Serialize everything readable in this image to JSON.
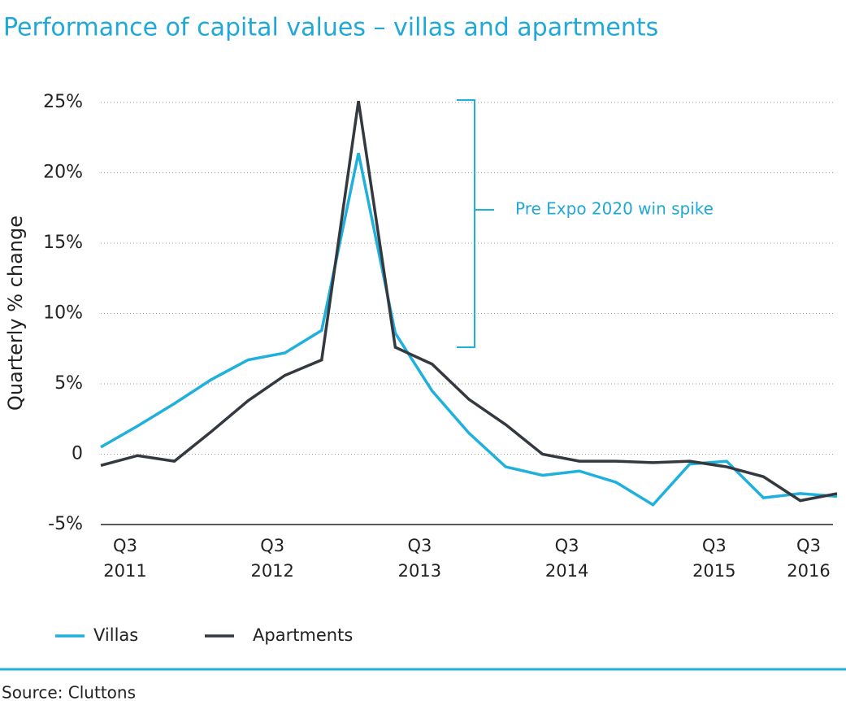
{
  "chart_data": {
    "type": "line",
    "title": "Performance of capital values – villas and apartments",
    "y_label": "Quarterly % change",
    "annotation": "Pre Expo 2020 win spike",
    "source": "Source: Cluttons",
    "categories": [
      "Q3\n2011",
      null,
      null,
      null,
      "Q3\n2012",
      null,
      null,
      null,
      "Q3\n2013",
      null,
      null,
      null,
      "Q3\n2014",
      null,
      null,
      null,
      "Q3\n2015",
      null,
      null,
      null,
      "Q3\n2016"
    ],
    "series": [
      {
        "name": "Villas",
        "color": "#1fb0dc",
        "values": [
          0.5,
          2.0,
          3.6,
          5.3,
          6.7,
          7.2,
          8.8,
          21.4,
          8.6,
          4.5,
          1.5,
          -0.9,
          -1.5,
          -1.2,
          -2.0,
          -3.6,
          -0.7,
          -0.5,
          -3.1,
          -2.8,
          -3.0
        ]
      },
      {
        "name": "Apartments",
        "color": "#33393f",
        "values": [
          -0.8,
          -0.1,
          -0.5,
          1.6,
          3.8,
          5.6,
          6.7,
          25.1,
          7.6,
          6.4,
          3.9,
          2.1,
          0.0,
          -0.5,
          -0.5,
          -0.6,
          -0.5,
          -0.9,
          -1.6,
          -3.3,
          -2.8
        ]
      }
    ],
    "ylim": [
      -5,
      25
    ],
    "yticks": [
      {
        "value": -5,
        "label": "-5%"
      },
      0,
      {
        "value": 5,
        "label": "5%"
      },
      {
        "value": 10,
        "label": "10%"
      },
      {
        "value": 15,
        "label": "15%"
      },
      {
        "value": 20,
        "label": "20%"
      },
      {
        "value": 25,
        "label": "25%"
      }
    ],
    "grid": true,
    "legend": "bottom-left"
  }
}
